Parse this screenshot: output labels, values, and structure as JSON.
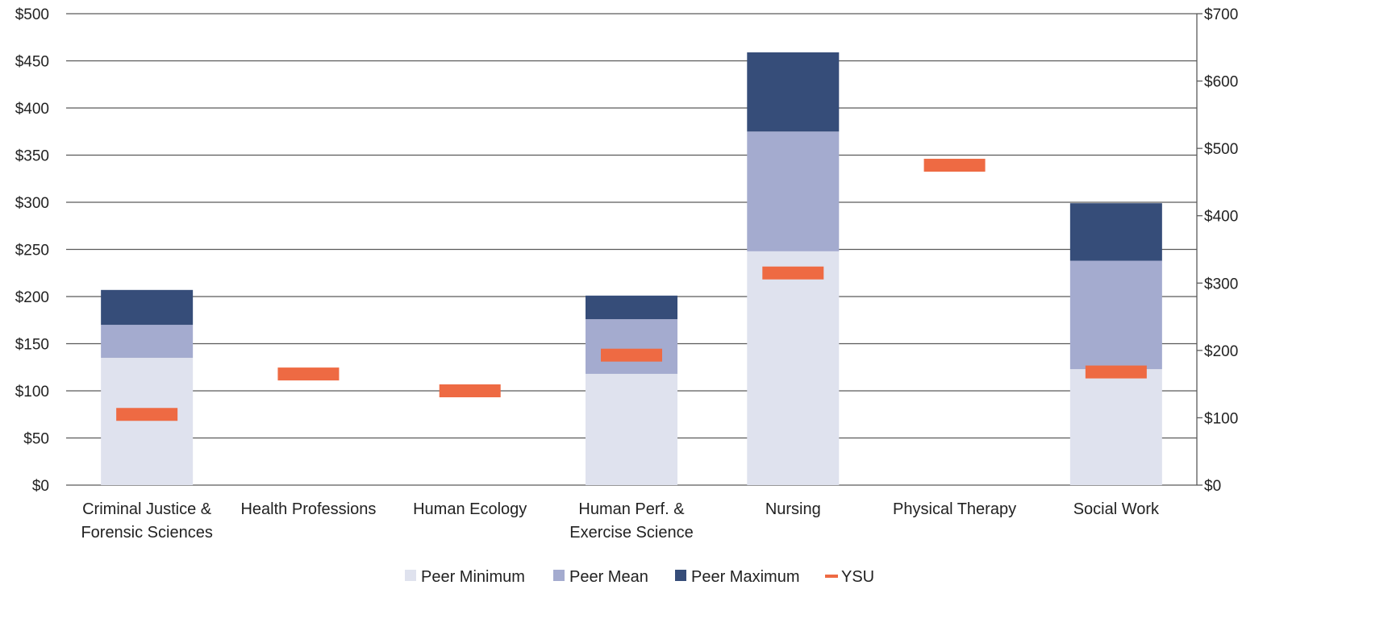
{
  "chart_data": {
    "type": "bar",
    "stacked": true,
    "categories": [
      [
        "Criminal Justice &",
        "Forensic Sciences"
      ],
      [
        "Health Professions"
      ],
      [
        "Human Ecology"
      ],
      [
        "Human Perf. &",
        "Exercise Science"
      ],
      [
        "Nursing"
      ],
      [
        "Physical Therapy"
      ],
      [
        "Social Work"
      ]
    ],
    "series": [
      {
        "name": "Peer Minimum",
        "values": [
          135,
          null,
          null,
          118,
          248,
          null,
          123
        ],
        "color": "#dfe2ee",
        "legend_label": "Peer Minimum"
      },
      {
        "name": "Peer Mean",
        "values": [
          35,
          null,
          null,
          58,
          127,
          null,
          115
        ],
        "color": "#a4abcf",
        "legend_label": "Peer Mean"
      },
      {
        "name": "Peer Maximum",
        "values": [
          37,
          null,
          null,
          25,
          84,
          null,
          61
        ],
        "color": "#364d79",
        "legend_label": "Peer Maximum"
      },
      {
        "name": "YSU",
        "axis": "right",
        "type": "marker",
        "values": [
          105,
          165,
          140,
          193,
          315,
          475,
          168
        ],
        "color": "#ee6a43",
        "legend_label": "YSU"
      }
    ],
    "y_left": {
      "ylim": [
        0,
        500
      ],
      "ticks": [
        "$0",
        "$50",
        "$100",
        "$150",
        "$200",
        "$250",
        "$300",
        "$350",
        "$400",
        "$450",
        "$500"
      ]
    },
    "y_right": {
      "ylim": [
        0,
        700
      ],
      "ticks": [
        "$0",
        "$100",
        "$200",
        "$300",
        "$400",
        "$500",
        "$600",
        "$700"
      ]
    },
    "grid": true,
    "legend_position": "bottom"
  }
}
